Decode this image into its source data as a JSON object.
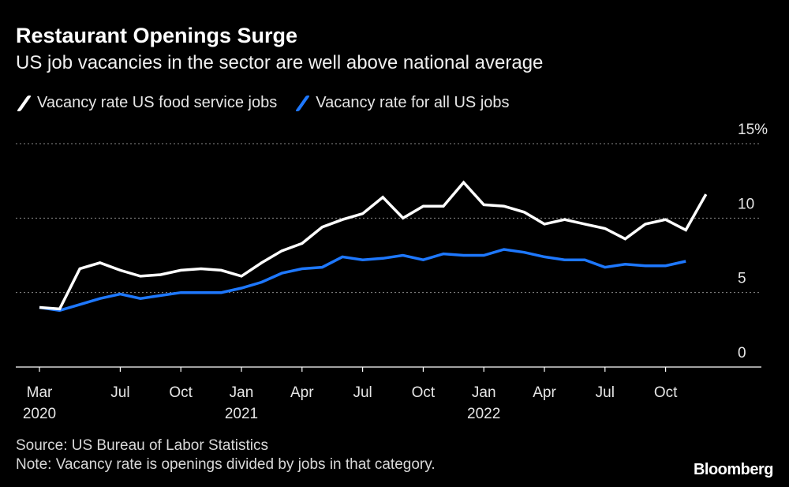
{
  "title": "Restaurant Openings Surge",
  "subtitle": "US job vacancies in the sector are well above national average",
  "legend": [
    {
      "label": "Vacancy rate US food service jobs",
      "color": "#ffffff"
    },
    {
      "label": "Vacancy rate for all US jobs",
      "color": "#1e78ff"
    }
  ],
  "source": "Source: US Bureau of Labor Statistics",
  "note": "Note: Vacancy rate is openings divided by jobs in that category.",
  "brand": "Bloomberg",
  "chart_data": {
    "type": "line",
    "title": "Restaurant Openings Surge",
    "xlabel": "",
    "ylabel": "",
    "ylim": [
      0,
      15
    ],
    "y_ticks": [
      {
        "value": 0,
        "label": "0"
      },
      {
        "value": 5,
        "label": "5"
      },
      {
        "value": 10,
        "label": "10"
      },
      {
        "value": 15,
        "label": "15%"
      }
    ],
    "x_ticks": [
      {
        "index": 0,
        "label": "Mar",
        "sub": "2020"
      },
      {
        "index": 4,
        "label": "Jul",
        "sub": ""
      },
      {
        "index": 7,
        "label": "Oct",
        "sub": ""
      },
      {
        "index": 10,
        "label": "Jan",
        "sub": "2021"
      },
      {
        "index": 13,
        "label": "Apr",
        "sub": ""
      },
      {
        "index": 16,
        "label": "Jul",
        "sub": ""
      },
      {
        "index": 19,
        "label": "Oct",
        "sub": ""
      },
      {
        "index": 22,
        "label": "Jan",
        "sub": "2022"
      },
      {
        "index": 25,
        "label": "Apr",
        "sub": ""
      },
      {
        "index": 28,
        "label": "Jul",
        "sub": ""
      },
      {
        "index": 31,
        "label": "Oct",
        "sub": ""
      }
    ],
    "x": [
      "Mar 2020",
      "Apr 2020",
      "May 2020",
      "Jun 2020",
      "Jul 2020",
      "Aug 2020",
      "Sep 2020",
      "Oct 2020",
      "Nov 2020",
      "Dec 2020",
      "Jan 2021",
      "Feb 2021",
      "Mar 2021",
      "Apr 2021",
      "May 2021",
      "Jun 2021",
      "Jul 2021",
      "Aug 2021",
      "Sep 2021",
      "Oct 2021",
      "Nov 2021",
      "Dec 2021",
      "Jan 2022",
      "Feb 2022",
      "Mar 2022",
      "Apr 2022",
      "May 2022",
      "Jun 2022",
      "Jul 2022",
      "Aug 2022",
      "Sep 2022",
      "Oct 2022",
      "Nov 2022",
      "Dec 2022",
      "Jan 2023"
    ],
    "series": [
      {
        "name": "Vacancy rate US food service jobs",
        "color": "#ffffff",
        "values": [
          4.0,
          3.9,
          6.6,
          7.0,
          6.5,
          6.1,
          6.2,
          6.5,
          6.6,
          6.5,
          6.1,
          7.0,
          7.8,
          8.3,
          9.4,
          9.9,
          10.3,
          11.4,
          10.0,
          10.8,
          10.8,
          12.4,
          10.9,
          10.8,
          10.4,
          9.6,
          9.9,
          9.6,
          9.3,
          8.6,
          9.6,
          9.9,
          9.2,
          11.6,
          null
        ]
      },
      {
        "name": "Vacancy rate for all US jobs",
        "color": "#1e78ff",
        "values": [
          4.0,
          3.8,
          4.2,
          4.6,
          4.9,
          4.6,
          4.8,
          5.0,
          5.0,
          5.0,
          5.3,
          5.7,
          6.3,
          6.6,
          6.7,
          7.4,
          7.2,
          7.3,
          7.5,
          7.2,
          7.6,
          7.5,
          7.5,
          7.9,
          7.7,
          7.4,
          7.2,
          7.2,
          6.7,
          6.9,
          6.8,
          6.8,
          7.1,
          null,
          null
        ]
      }
    ]
  }
}
